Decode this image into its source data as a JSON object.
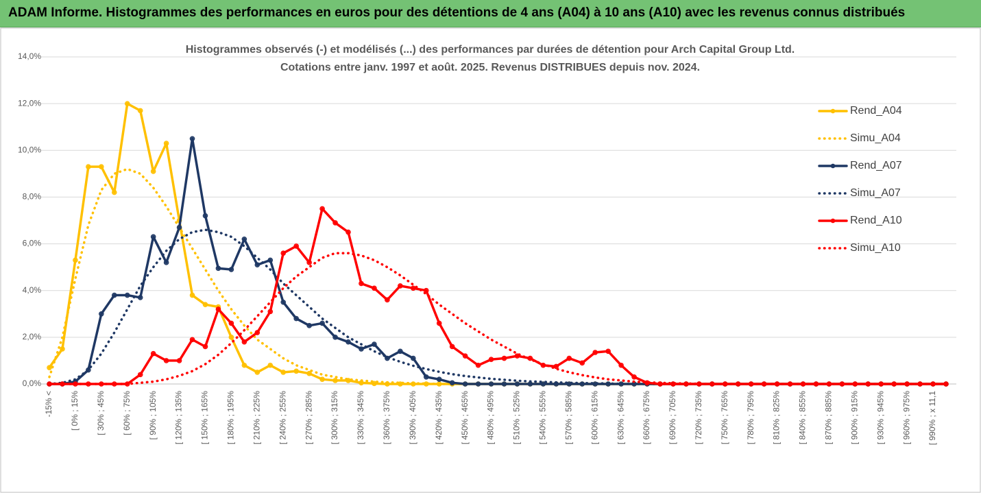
{
  "header": {
    "title": "ADAM Informe. Histogrammes des performances en euros pour des détentions de 4 ans (A04) à 10 ans (A10) avec les revenus connus distribués"
  },
  "chart_data": {
    "type": "line",
    "title": "Histogrammes observés (-) et modélisés (...) des performances par durées de détention pour Arch Capital Group Ltd.",
    "subtitle": "Cotations entre janv. 1997 et août. 2025. Revenus DISTRIBUES depuis nov. 2024.",
    "categories": [
      "-15% <",
      null,
      "[ 0% ; 15%",
      null,
      "[ 30% ; 45%",
      null,
      "[ 60% ; 75%",
      null,
      "[ 90% ; 105%",
      null,
      "[ 120% ; 135%",
      null,
      "[ 150% ; 165%",
      null,
      "[ 180% ; 195%",
      null,
      "[ 210% ; 225%",
      null,
      "[ 240% ; 255%",
      null,
      "[ 270% ; 285%",
      null,
      "[ 300% ; 315%",
      null,
      "[ 330% ; 345%",
      null,
      "[ 360% ; 375%",
      null,
      "[ 390% ; 405%",
      null,
      "[ 420% ; 435%",
      null,
      "[ 450% ; 465%",
      null,
      "[ 480% ; 495%",
      null,
      "[ 510% ; 525%",
      null,
      "[ 540% ; 555%",
      null,
      "[ 570% ; 585%",
      null,
      "[ 600% ; 615%",
      null,
      "[ 630% ; 645%",
      null,
      "[ 660% ; 675%",
      null,
      "[ 690% ; 705%",
      null,
      "[ 720% ; 735%",
      null,
      "[ 750% ; 765%",
      null,
      "[ 780% ; 795%",
      null,
      "[ 810% ; 825%",
      null,
      "[ 840% ; 855%",
      null,
      "[ 870% ; 885%",
      null,
      "[ 900% ; 915%",
      null,
      "[ 930% ; 945%",
      null,
      "[ 960% ; 975%",
      null,
      "[ 990% ; x 11,1",
      null
    ],
    "series": [
      {
        "name": "Rend_A04",
        "color": "#ffc000",
        "style": "solid",
        "markers": true,
        "values": [
          0.7,
          1.5,
          5.3,
          9.3,
          9.3,
          8.2,
          12.0,
          11.7,
          9.1,
          10.3,
          7.0,
          3.8,
          3.4,
          3.3,
          2.0,
          0.8,
          0.5,
          0.8,
          0.5,
          0.55,
          0.45,
          0.2,
          0.15,
          0.15,
          0.05,
          0.02,
          0,
          0,
          0,
          0,
          0,
          0,
          0,
          0,
          0,
          0,
          0,
          0,
          0,
          0,
          0,
          0,
          0,
          0,
          0,
          0,
          0,
          0,
          0,
          0,
          0,
          0,
          0,
          0,
          0,
          0,
          0,
          0,
          0,
          0,
          0,
          0,
          0,
          0,
          0,
          0,
          0,
          0,
          0,
          0
        ]
      },
      {
        "name": "Simu_A04",
        "color": "#ffc000",
        "style": "dotted",
        "markers": false,
        "values": [
          0.3,
          2.0,
          4.5,
          6.8,
          8.3,
          9.0,
          9.2,
          9.0,
          8.4,
          7.6,
          6.7,
          5.8,
          4.9,
          4.0,
          3.2,
          2.5,
          1.9,
          1.5,
          1.1,
          0.8,
          0.6,
          0.4,
          0.3,
          0.2,
          0.15,
          0.1,
          0.07,
          0.05,
          0.03,
          0.02,
          0,
          0,
          0,
          0,
          0,
          0,
          0,
          0,
          0,
          0,
          0,
          0,
          0,
          0,
          0,
          0,
          0,
          0,
          0,
          0,
          0,
          0,
          0,
          0,
          0,
          0,
          0,
          0,
          0,
          0,
          0,
          0,
          0,
          0,
          0,
          0,
          0,
          0,
          0,
          0
        ]
      },
      {
        "name": "Rend_A07",
        "color": "#1f3864",
        "style": "solid",
        "markers": true,
        "values": [
          0,
          0,
          0.1,
          0.6,
          3.0,
          3.8,
          3.8,
          3.7,
          6.3,
          5.2,
          6.7,
          10.5,
          7.2,
          4.95,
          4.9,
          6.2,
          5.1,
          5.3,
          3.5,
          2.8,
          2.5,
          2.6,
          2.0,
          1.8,
          1.5,
          1.7,
          1.1,
          1.4,
          1.1,
          0.3,
          0.2,
          0.05,
          0,
          0,
          0,
          0,
          0,
          0,
          0,
          0,
          0,
          0,
          0,
          0,
          0,
          0,
          0,
          0,
          0,
          0,
          0,
          0,
          0,
          0,
          0,
          0,
          0,
          0,
          0,
          0,
          0,
          0,
          0,
          0,
          0,
          0,
          0,
          0,
          0,
          0
        ]
      },
      {
        "name": "Simu_A07",
        "color": "#1f3864",
        "style": "dotted",
        "markers": false,
        "values": [
          0,
          0.05,
          0.2,
          0.6,
          1.3,
          2.2,
          3.2,
          4.2,
          5.0,
          5.7,
          6.2,
          6.5,
          6.6,
          6.5,
          6.3,
          5.9,
          5.4,
          4.9,
          4.3,
          3.8,
          3.3,
          2.8,
          2.4,
          2.0,
          1.7,
          1.4,
          1.15,
          0.95,
          0.78,
          0.64,
          0.52,
          0.42,
          0.34,
          0.28,
          0.22,
          0.18,
          0.14,
          0.11,
          0.09,
          0.07,
          0.05,
          0.04,
          0.03,
          0.02,
          0.01,
          0,
          0,
          0,
          0,
          0,
          0,
          0,
          0,
          0,
          0,
          0,
          0,
          0,
          0,
          0,
          0,
          0,
          0,
          0,
          0,
          0,
          0,
          0,
          0,
          0
        ]
      },
      {
        "name": "Rend_A10",
        "color": "#ff0000",
        "style": "solid",
        "markers": true,
        "values": [
          0,
          0,
          0,
          0,
          0,
          0,
          0,
          0.4,
          1.3,
          1.0,
          1.0,
          1.9,
          1.6,
          3.2,
          2.6,
          1.8,
          2.2,
          3.1,
          5.6,
          5.9,
          5.2,
          7.5,
          6.9,
          6.5,
          4.3,
          4.1,
          3.6,
          4.2,
          4.1,
          4.0,
          2.6,
          1.6,
          1.2,
          0.8,
          1.05,
          1.1,
          1.2,
          1.1,
          0.8,
          0.75,
          1.1,
          0.9,
          1.35,
          1.4,
          0.8,
          0.3,
          0.05,
          0,
          0,
          0,
          0,
          0,
          0,
          0,
          0,
          0,
          0,
          0,
          0,
          0,
          0,
          0,
          0,
          0,
          0,
          0,
          0,
          0,
          0,
          0
        ]
      },
      {
        "name": "Simu_A10",
        "color": "#ff0000",
        "style": "dotted",
        "markers": false,
        "values": [
          0,
          0,
          0,
          0,
          0,
          0,
          0,
          0.05,
          0.1,
          0.2,
          0.35,
          0.55,
          0.85,
          1.25,
          1.75,
          2.3,
          2.9,
          3.5,
          4.1,
          4.6,
          5.0,
          5.4,
          5.6,
          5.6,
          5.5,
          5.3,
          5.0,
          4.65,
          4.25,
          3.85,
          3.4,
          3.0,
          2.6,
          2.25,
          1.9,
          1.6,
          1.3,
          1.05,
          0.85,
          0.65,
          0.5,
          0.38,
          0.28,
          0.2,
          0.15,
          0.1,
          0.07,
          0.05,
          0.03,
          0.02,
          0.01,
          0,
          0,
          0,
          0,
          0,
          0,
          0,
          0,
          0,
          0,
          0,
          0,
          0,
          0,
          0,
          0,
          0,
          0,
          0
        ]
      }
    ],
    "ylim": [
      0,
      14
    ],
    "yticks": [
      {
        "value": 0,
        "label": "0,0%"
      },
      {
        "value": 2,
        "label": "2,0%"
      },
      {
        "value": 4,
        "label": "4,0%"
      },
      {
        "value": 6,
        "label": "6,0%"
      },
      {
        "value": 8,
        "label": "8,0%"
      },
      {
        "value": 10,
        "label": "10,0%"
      },
      {
        "value": 12,
        "label": "12,0%"
      },
      {
        "value": 14,
        "label": "14,0%"
      }
    ],
    "grid": true,
    "legend": "right"
  }
}
